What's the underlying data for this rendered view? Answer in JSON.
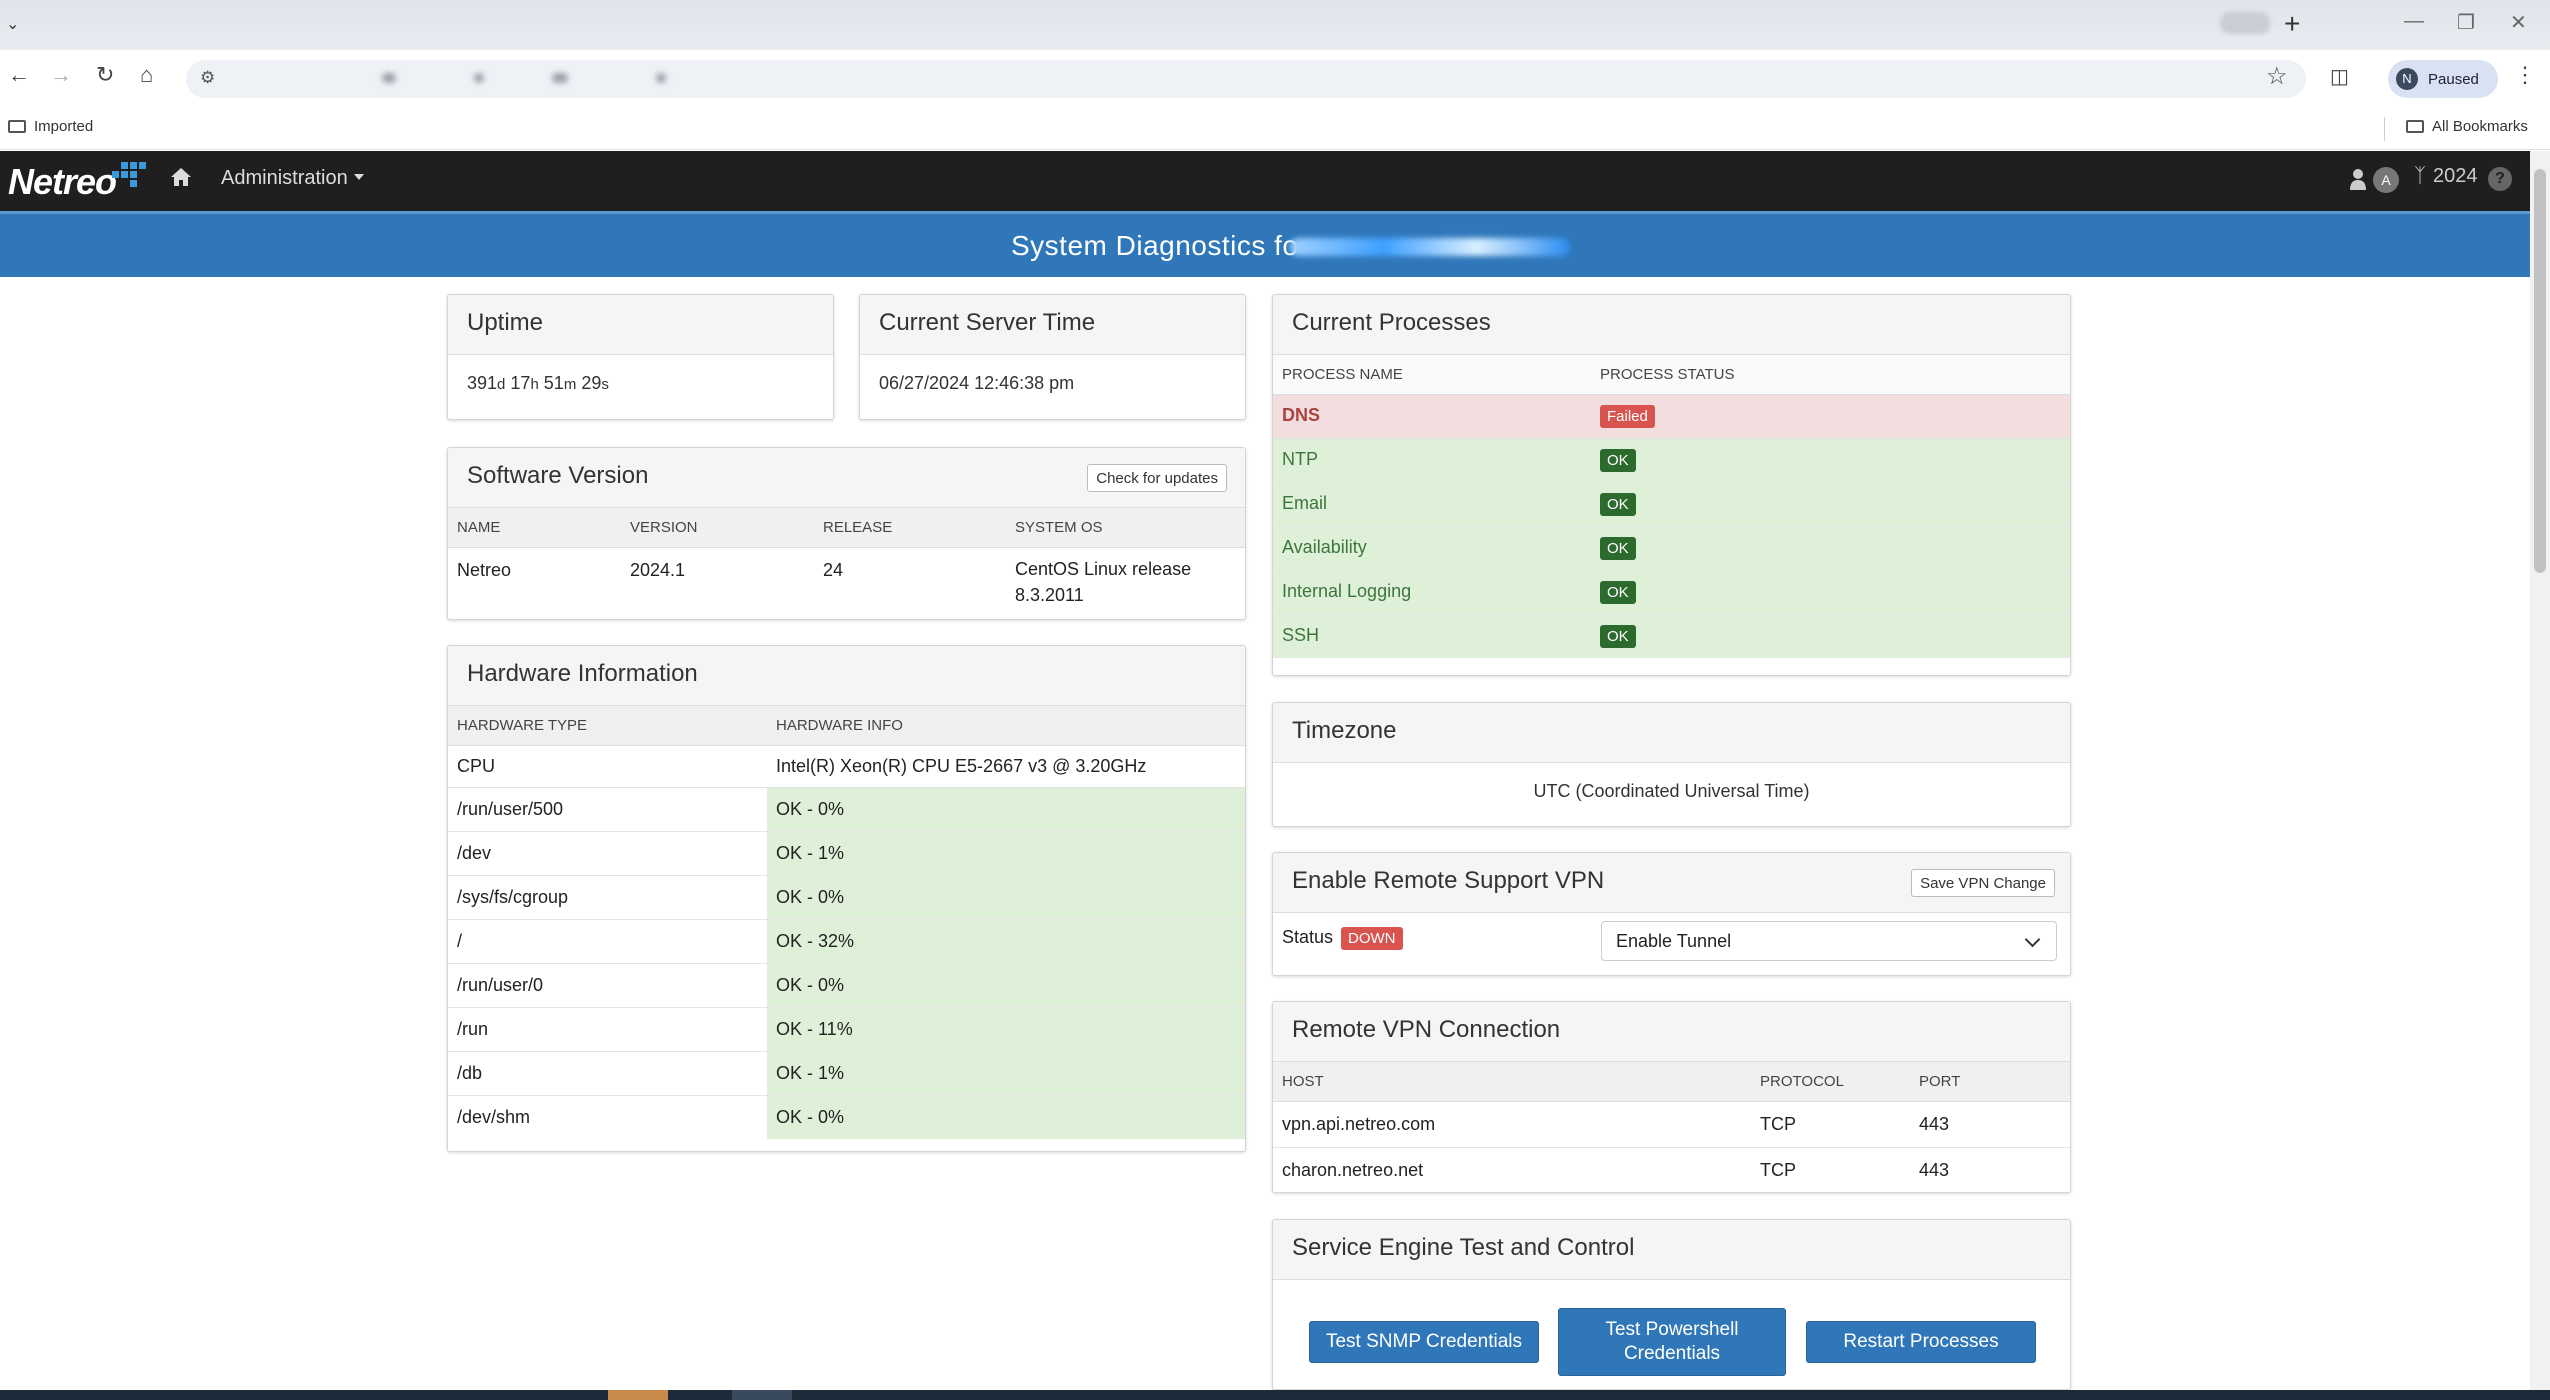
{
  "browser": {
    "new_tab_symbol": "+",
    "profile_initial": "N",
    "profile_status": "Paused",
    "bookmarks": {
      "left_folder": "Imported",
      "right_folder": "All Bookmarks"
    }
  },
  "navbar": {
    "brand": "Netreo",
    "menu_admin": "Administration",
    "user_initial": "A",
    "version_label": "2024",
    "help_symbol": "?"
  },
  "banner": {
    "title": "System Diagnostics fo"
  },
  "uptime": {
    "title": "Uptime",
    "days": "391",
    "days_unit": "d",
    "hours": "17",
    "hours_unit": "h",
    "minutes": "51",
    "minutes_unit": "m",
    "seconds": "29",
    "seconds_unit": "s"
  },
  "server_time": {
    "title": "Current Server Time",
    "value": "06/27/2024 12:46:38 pm"
  },
  "software": {
    "title": "Software Version",
    "check_button": "Check for updates",
    "columns": [
      "NAME",
      "VERSION",
      "RELEASE",
      "SYSTEM OS"
    ],
    "row": {
      "name": "Netreo",
      "version": "2024.1",
      "release": "24",
      "os": "CentOS Linux release 8.3.2011"
    }
  },
  "hardware": {
    "title": "Hardware Information",
    "columns": [
      "HARDWARE TYPE",
      "HARDWARE INFO"
    ],
    "cpu": {
      "type": "CPU",
      "info": "Intel(R) Xeon(R) CPU E5-2667 v3 @ 3.20GHz"
    },
    "disks": [
      {
        "type": "/run/user/500",
        "info": "OK - 0%"
      },
      {
        "type": "/dev",
        "info": "OK - 1%"
      },
      {
        "type": "/sys/fs/cgroup",
        "info": "OK - 0%"
      },
      {
        "type": "/",
        "info": "OK - 32%"
      },
      {
        "type": "/run/user/0",
        "info": "OK - 0%"
      },
      {
        "type": "/run",
        "info": "OK - 11%"
      },
      {
        "type": "/db",
        "info": "OK - 1%"
      },
      {
        "type": "/dev/shm",
        "info": "OK - 0%"
      }
    ]
  },
  "processes": {
    "title": "Current Processes",
    "columns": [
      "PROCESS NAME",
      "PROCESS STATUS"
    ],
    "rows": [
      {
        "name": "DNS",
        "status": "Failed"
      },
      {
        "name": "NTP",
        "status": "OK"
      },
      {
        "name": "Email",
        "status": "OK"
      },
      {
        "name": "Availability",
        "status": "OK"
      },
      {
        "name": "Internal Logging",
        "status": "OK"
      },
      {
        "name": "SSH",
        "status": "OK"
      }
    ]
  },
  "timezone": {
    "title": "Timezone",
    "value": "UTC (Coordinated Universal Time)"
  },
  "vpn": {
    "title": "Enable Remote Support VPN",
    "save_button": "Save VPN Change",
    "status_label": "Status",
    "status_badge": "DOWN",
    "select_value": "Enable Tunnel"
  },
  "remote_vpn": {
    "title": "Remote VPN Connection",
    "columns": [
      "HOST",
      "PROTOCOL",
      "PORT"
    ],
    "rows": [
      {
        "host": "vpn.api.netreo.com",
        "protocol": "TCP",
        "port": "443"
      },
      {
        "host": "charon.netreo.net",
        "protocol": "TCP",
        "port": "443"
      }
    ]
  },
  "service_engine": {
    "title": "Service Engine Test and Control",
    "btn_snmp": "Test SNMP Credentials",
    "btn_powershell": "Test Powershell Credentials",
    "btn_restart": "Restart Processes"
  },
  "colors": {
    "banner": "#2f77b9",
    "navbar": "#1f1f1f",
    "ok_bg": "#dff0d8",
    "ok_text": "#3c763d",
    "fail_bg": "#f2dede",
    "fail_text": "#a94442",
    "badge_fail": "#d9534f"
  }
}
